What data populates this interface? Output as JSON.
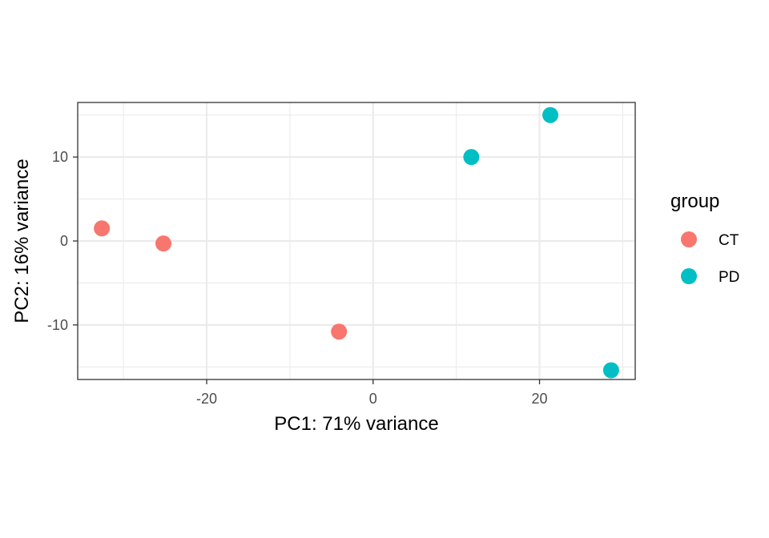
{
  "chart_data": {
    "type": "scatter",
    "xlabel": "PC1: 71% variance",
    "ylabel": "PC2: 16% variance",
    "xlim": [
      -35.5,
      31.5
    ],
    "ylim": [
      -16.5,
      16.5
    ],
    "x_ticks": [
      -20,
      0,
      20
    ],
    "y_ticks": [
      -10,
      0,
      10
    ],
    "x_minor": [
      -30,
      -10,
      10,
      30
    ],
    "y_minor": [
      -15,
      -5,
      5,
      15
    ],
    "x_tick_labels": [
      "-20",
      "0",
      "20"
    ],
    "y_tick_labels": [
      "-10",
      "0",
      "10"
    ],
    "grid": true,
    "legend": {
      "title": "group",
      "placement": "right",
      "entries": [
        "CT",
        "PD"
      ]
    },
    "series": [
      {
        "name": "CT",
        "color": "#F8766D",
        "points": [
          {
            "x": -32.6,
            "y": 1.5
          },
          {
            "x": -25.2,
            "y": -0.3
          },
          {
            "x": -4.1,
            "y": -10.8
          }
        ]
      },
      {
        "name": "PD",
        "color": "#00BFC4",
        "points": [
          {
            "x": 11.8,
            "y": 10.0
          },
          {
            "x": 21.3,
            "y": 15.0
          },
          {
            "x": 28.6,
            "y": -15.4
          }
        ]
      }
    ]
  }
}
